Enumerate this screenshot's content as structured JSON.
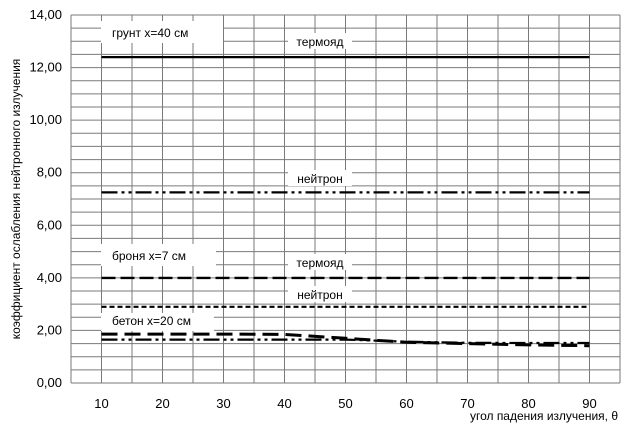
{
  "chart_data": {
    "type": "line",
    "xlabel": "угол падения излучения, θ",
    "ylabel": "коэффициент ослабления нейтронного излучения",
    "xlim": [
      5,
      95
    ],
    "ylim": [
      0,
      14
    ],
    "x_ticks": [
      "10",
      "20",
      "30",
      "40",
      "50",
      "60",
      "70",
      "80",
      "90"
    ],
    "y_ticks": [
      "0,00",
      "2,00",
      "4,00",
      "6,00",
      "8,00",
      "10,00",
      "12,00",
      "14,00"
    ],
    "grid": true,
    "legend": "none",
    "x": [
      10,
      20,
      30,
      40,
      50,
      60,
      70,
      80,
      90
    ],
    "series": [
      {
        "name": "термояд",
        "group": "грунт х=40 см",
        "style": "solid",
        "values": [
          12.4,
          12.4,
          12.4,
          12.4,
          12.4,
          12.4,
          12.4,
          12.4,
          12.4
        ]
      },
      {
        "name": "нейтрон",
        "group": "грунт х=40 см",
        "style": "dash-dot-dot",
        "values": [
          7.25,
          7.25,
          7.25,
          7.25,
          7.25,
          7.25,
          7.25,
          7.25,
          7.25
        ]
      },
      {
        "name": "термояд",
        "group": "броня х=7 см",
        "style": "dash",
        "values": [
          4.0,
          4.0,
          4.0,
          4.0,
          4.0,
          4.0,
          4.0,
          4.0,
          4.0
        ]
      },
      {
        "name": "нейтрон",
        "group": "броня х=7 см",
        "style": "short-dash",
        "values": [
          2.9,
          2.9,
          2.9,
          2.9,
          2.9,
          2.9,
          2.9,
          2.9,
          2.9
        ]
      },
      {
        "name": "",
        "group": "бетон х=20 см",
        "style": "long-dash",
        "values": [
          1.86,
          1.86,
          1.86,
          1.85,
          1.7,
          1.55,
          1.5,
          1.45,
          1.42
        ]
      },
      {
        "name": "",
        "group": "бетон х=20 см",
        "style": "dash-dot-dot",
        "values": [
          1.65,
          1.65,
          1.65,
          1.65,
          1.65,
          1.57,
          1.53,
          1.52,
          1.52
        ]
      }
    ],
    "annotations": [
      {
        "text": "грунт х=40 см",
        "kind": "group"
      },
      {
        "text": "термояд",
        "kind": "series"
      },
      {
        "text": "нейтрон",
        "kind": "series"
      },
      {
        "text": "броня х=7 см",
        "kind": "group"
      },
      {
        "text": "термояд",
        "kind": "series"
      },
      {
        "text": "нейтрон",
        "kind": "series"
      },
      {
        "text": "бетон х=20 см",
        "kind": "group"
      }
    ]
  }
}
